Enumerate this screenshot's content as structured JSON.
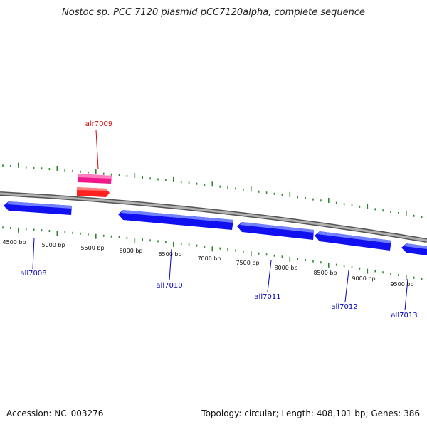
{
  "title": "Nostoc sp. PCC 7120 plasmid pCC7120alpha, complete sequence",
  "footer": {
    "accession": "Accession: NC_003276",
    "summary": "Topology: circular; Length: 408,101 bp; Genes: 386"
  },
  "scale_labels": [
    "4500 bp",
    "5000 bp",
    "5500 bp",
    "6000 bp",
    "6500 bp",
    "7000 bp",
    "7500 bp",
    "8000 bp",
    "8500 bp",
    "9000 bp",
    "9500 bp"
  ],
  "genes": [
    {
      "name": "alr7009",
      "strand": "forward",
      "color": "#dd0000",
      "gene_color": "#ff2020",
      "cds_color": "#f0188a"
    },
    {
      "name": "all7008",
      "strand": "reverse",
      "color": "#0000c0",
      "gene_color": "#1010f0"
    },
    {
      "name": "all7010",
      "strand": "reverse",
      "color": "#0000c0",
      "gene_color": "#1010f0"
    },
    {
      "name": "all7011",
      "strand": "reverse",
      "color": "#0000c0",
      "gene_color": "#1010f0"
    },
    {
      "name": "all7012",
      "strand": "reverse",
      "color": "#0000c0",
      "gene_color": "#1010f0"
    },
    {
      "name": "all7013",
      "strand": "reverse",
      "color": "#0000c0",
      "gene_color": "#1010f0"
    }
  ],
  "colors": {
    "backbone": "#888888",
    "ticks": "#2a8a2a"
  }
}
